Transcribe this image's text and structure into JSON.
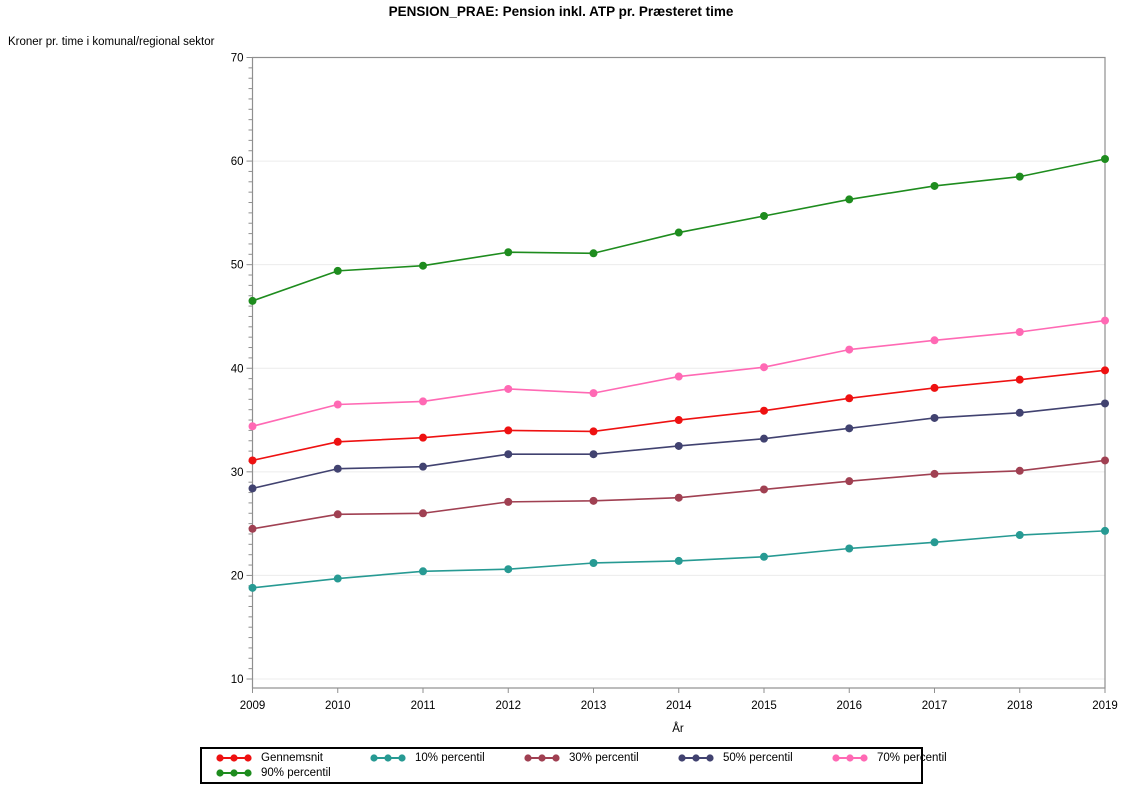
{
  "title": "PENSION_PRAE: Pension inkl. ATP pr. Præsteret time",
  "chart_data": {
    "type": "line",
    "title": "PENSION_PRAE: Pension inkl. ATP pr. Præsteret time",
    "ylabel": "Kroner pr. time i komunal/regional sektor",
    "xlabel": "År",
    "x": [
      2009,
      2010,
      2011,
      2012,
      2013,
      2014,
      2015,
      2016,
      2017,
      2018,
      2019
    ],
    "ylim": [
      10,
      70
    ],
    "ytick_step": 10,
    "ytick_labels": [
      "10",
      "20",
      "30",
      "40",
      "50",
      "60",
      "70"
    ],
    "grid": "horizontal",
    "legend_position": "bottom",
    "marker": "filled-circle",
    "series": [
      {
        "name": "Gennemsnit",
        "color": "#ee1111",
        "values": [
          31.1,
          32.9,
          33.3,
          34.0,
          33.9,
          35.0,
          35.9,
          37.1,
          38.1,
          38.9,
          39.8
        ]
      },
      {
        "name": "10% percentil",
        "color": "#279a93",
        "values": [
          18.8,
          19.7,
          20.4,
          20.6,
          21.2,
          21.4,
          21.8,
          22.6,
          23.2,
          23.9,
          24.3
        ]
      },
      {
        "name": "30% percentil",
        "color": "#a04052",
        "values": [
          24.5,
          25.9,
          26.0,
          27.1,
          27.2,
          27.5,
          28.3,
          29.1,
          29.8,
          30.1,
          31.1
        ]
      },
      {
        "name": "50% percentil",
        "color": "#414270",
        "values": [
          28.4,
          30.3,
          30.5,
          31.7,
          31.7,
          32.5,
          33.2,
          34.2,
          35.2,
          35.7,
          36.6
        ]
      },
      {
        "name": "70% percentil",
        "color": "#ff69b4",
        "values": [
          34.4,
          36.5,
          36.8,
          38.0,
          37.6,
          39.2,
          40.1,
          41.8,
          42.7,
          43.5,
          44.6
        ]
      },
      {
        "name": "90% percentil",
        "color": "#1e8c1e",
        "values": [
          46.5,
          49.4,
          49.9,
          51.2,
          51.1,
          53.1,
          54.7,
          56.3,
          57.6,
          58.5,
          60.2
        ]
      }
    ],
    "colors": {
      "grid": "#ececec",
      "frame": "#8f8f8f",
      "legend_border": "#000000",
      "background": "#ffffff"
    }
  }
}
